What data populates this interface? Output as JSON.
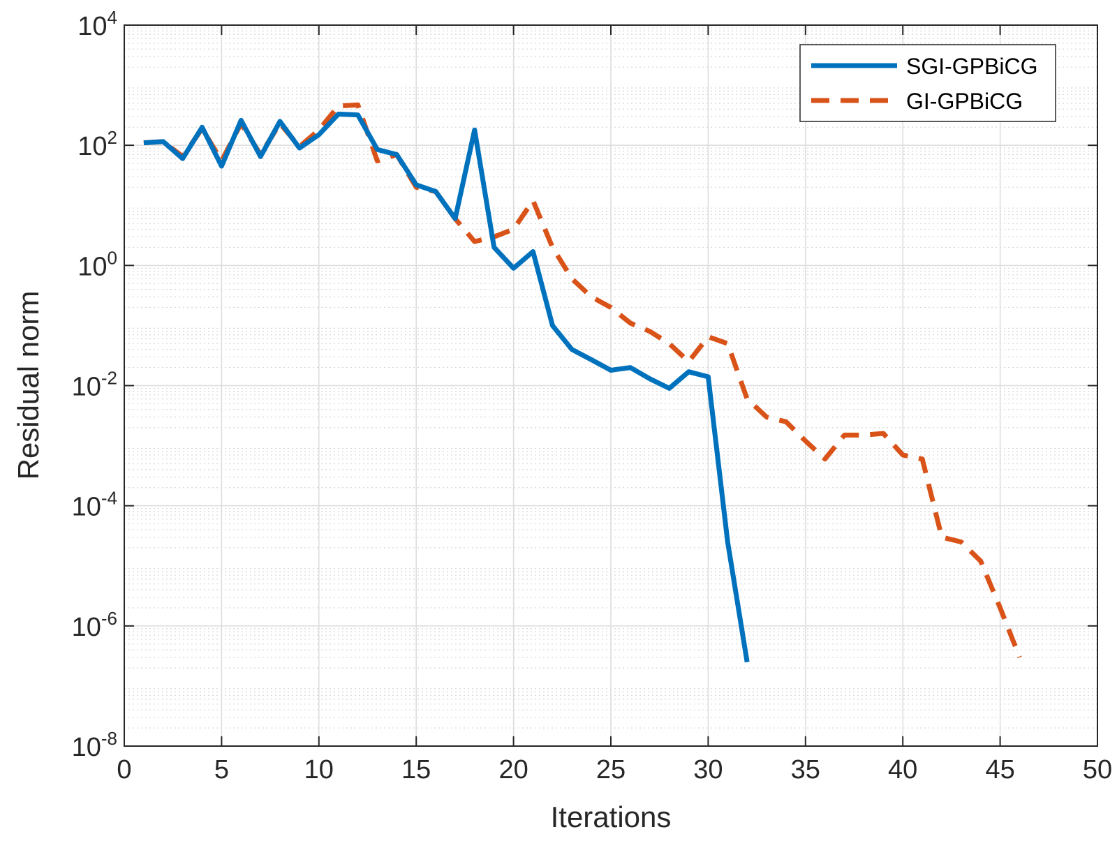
{
  "chart_data": {
    "type": "line",
    "xlabel": "Iterations",
    "ylabel": "Residual norm",
    "xlim": [
      0,
      50
    ],
    "ylim": [
      1e-08,
      10000.0
    ],
    "yscale": "log",
    "grid": true,
    "minor_grid": true,
    "legend_position": "top-right",
    "x_ticks": [
      0,
      5,
      10,
      15,
      20,
      25,
      30,
      35,
      40,
      45,
      50
    ],
    "y_ticks": [
      {
        "base": "10",
        "exp": "-8",
        "value": 1e-08
      },
      {
        "base": "10",
        "exp": "-6",
        "value": 1e-06
      },
      {
        "base": "10",
        "exp": "-4",
        "value": 0.0001
      },
      {
        "base": "10",
        "exp": "-2",
        "value": 0.01
      },
      {
        "base": "10",
        "exp": "0",
        "value": 1
      },
      {
        "base": "10",
        "exp": "2",
        "value": 100
      },
      {
        "base": "10",
        "exp": "4",
        "value": 10000
      }
    ],
    "series": [
      {
        "name": "SGI-GPBiCG",
        "color": "#0072BD",
        "style": "solid",
        "x": [
          1,
          2,
          3,
          4,
          5,
          6,
          7,
          8,
          9,
          10,
          11,
          12,
          13,
          14,
          15,
          16,
          17,
          18,
          19,
          20,
          21,
          22,
          23,
          24,
          25,
          26,
          27,
          28,
          29,
          30,
          31,
          32
        ],
        "y": [
          110,
          115,
          60,
          200,
          45,
          260,
          65,
          250,
          90,
          150,
          330,
          320,
          85,
          70,
          22,
          17,
          6,
          180,
          2,
          0.9,
          1.7,
          0.1,
          0.04,
          0.027,
          0.018,
          0.02,
          0.013,
          0.009,
          0.017,
          0.014,
          2.5e-05,
          2.5e-07
        ]
      },
      {
        "name": "GI-GPBiCG",
        "color": "#D95319",
        "style": "dashed",
        "x": [
          1,
          2,
          3,
          4,
          5,
          6,
          7,
          8,
          9,
          10,
          11,
          12,
          13,
          14,
          15,
          16,
          17,
          18,
          19,
          20,
          21,
          22,
          23,
          24,
          25,
          26,
          27,
          28,
          29,
          30,
          31,
          32,
          33,
          34,
          35,
          36,
          37,
          38,
          39,
          40,
          41,
          42,
          43,
          44,
          45,
          46
        ],
        "y": [
          110,
          115,
          65,
          190,
          55,
          230,
          70,
          230,
          95,
          180,
          450,
          470,
          55,
          70,
          20,
          17,
          6,
          2.5,
          3,
          4,
          12,
          2,
          0.6,
          0.3,
          0.2,
          0.11,
          0.08,
          0.05,
          0.025,
          0.065,
          0.05,
          0.006,
          0.003,
          0.0025,
          0.0012,
          0.0006,
          0.0015,
          0.0015,
          0.0016,
          0.0007,
          0.0006,
          3e-05,
          2.5e-05,
          1.2e-05,
          2e-06,
          3e-07
        ]
      }
    ]
  }
}
